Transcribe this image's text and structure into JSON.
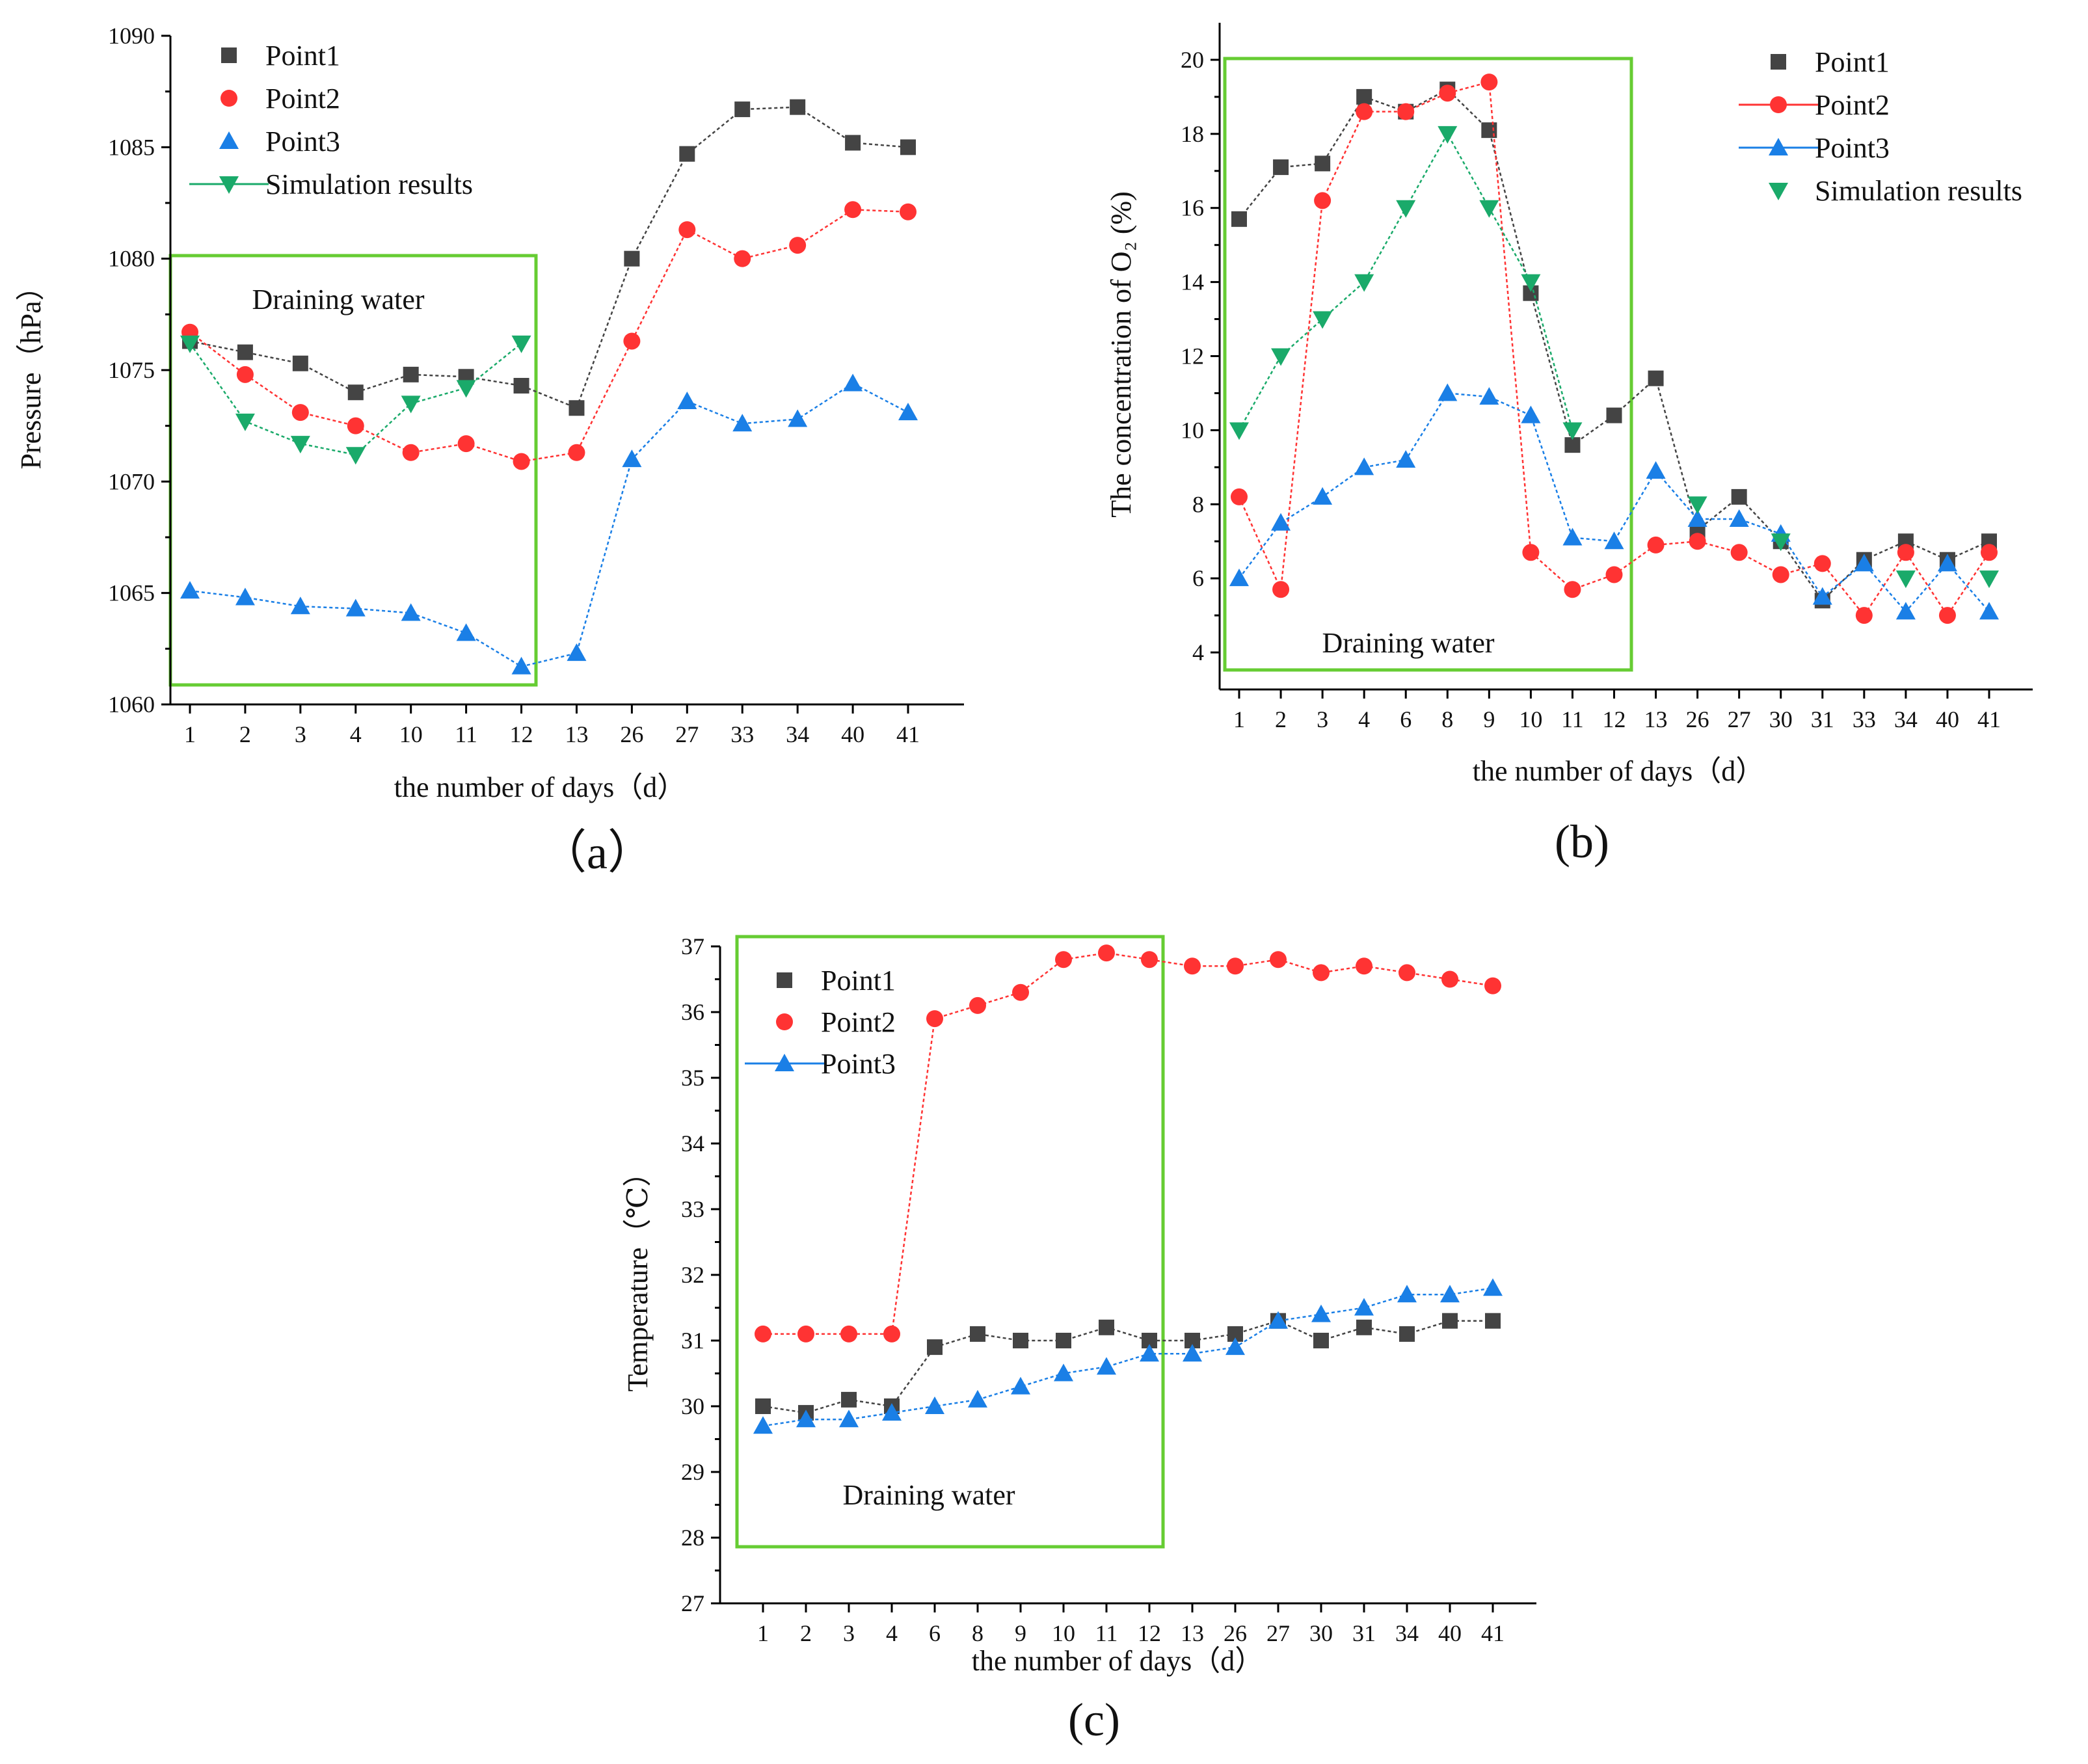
{
  "colors": {
    "Point1": "#444444",
    "Point2": "#ff3333",
    "Point3": "#1a7fe6",
    "Simulation results": "#1aaa6a",
    "box": "#66cc33"
  },
  "chart_data": [
    {
      "id": "a",
      "type": "line",
      "caption": "（a）",
      "xlabel": "the number of days（d）",
      "ylabel": "Pressure（hPa）",
      "ylim": [
        1060,
        1090
      ],
      "yticks": [
        1060,
        1065,
        1070,
        1075,
        1080,
        1085,
        1090
      ],
      "categories": [
        "1",
        "2",
        "3",
        "4",
        "10",
        "11",
        "12",
        "13",
        "26",
        "27",
        "33",
        "34",
        "40",
        "41"
      ],
      "annotation": "Draining water",
      "box_categories": [
        0,
        6
      ],
      "legend": [
        {
          "name": "Point1",
          "marker": "square",
          "line": false
        },
        {
          "name": "Point2",
          "marker": "circle",
          "line": false
        },
        {
          "name": "Point3",
          "marker": "triangle-up",
          "line": false
        },
        {
          "name": "Simulation results",
          "marker": "triangle-down",
          "line": true
        }
      ],
      "series": [
        {
          "name": "Point1",
          "marker": "square",
          "values": [
            1076.3,
            1075.8,
            1075.3,
            1074.0,
            1074.8,
            1074.7,
            1074.3,
            1073.3,
            1080.0,
            1084.7,
            1086.7,
            1086.8,
            1085.2,
            1085.0
          ]
        },
        {
          "name": "Point2",
          "marker": "circle",
          "values": [
            1076.7,
            1074.8,
            1073.1,
            1072.5,
            1071.3,
            1071.7,
            1070.9,
            1071.3,
            1076.3,
            1081.3,
            1080.0,
            1080.6,
            1082.2,
            1082.1
          ]
        },
        {
          "name": "Point3",
          "marker": "triangle-up",
          "values": [
            1065.1,
            1064.8,
            1064.4,
            1064.3,
            1064.1,
            1063.2,
            1061.7,
            1062.3,
            1071.0,
            1073.6,
            1072.6,
            1072.8,
            1074.4,
            1073.1
          ]
        },
        {
          "name": "Simulation results",
          "marker": "triangle-down",
          "values": [
            1076.2,
            1072.7,
            1071.7,
            1071.2,
            1073.5,
            1074.2,
            1076.2,
            null,
            null,
            null,
            null,
            null,
            null,
            null
          ]
        }
      ]
    },
    {
      "id": "b",
      "type": "line",
      "caption": "(b)",
      "xlabel": "the number of days（d）",
      "ylabel": "The concentration of O₂ (%)",
      "ylim": [
        3,
        21
      ],
      "yticks": [
        4,
        6,
        8,
        10,
        12,
        14,
        16,
        18,
        20
      ],
      "categories": [
        "1",
        "2",
        "3",
        "4",
        "6",
        "8",
        "9",
        "10",
        "11",
        "12",
        "13",
        "26",
        "27",
        "30",
        "31",
        "33",
        "34",
        "40",
        "41"
      ],
      "annotation": "Draining water",
      "box_categories": [
        0,
        9
      ],
      "legend": [
        {
          "name": "Point1",
          "marker": "square",
          "line": false
        },
        {
          "name": "Point2",
          "marker": "circle",
          "line": true
        },
        {
          "name": "Point3",
          "marker": "triangle-up",
          "line": true
        },
        {
          "name": "Simulation results",
          "marker": "triangle-down",
          "line": false
        }
      ],
      "series": [
        {
          "name": "Point1",
          "marker": "square",
          "values": [
            15.7,
            17.1,
            17.2,
            19.0,
            18.6,
            19.2,
            18.1,
            13.7,
            9.6,
            10.4,
            11.4,
            7.3,
            8.2,
            7.0,
            5.4,
            6.5,
            7.0,
            6.5,
            7.0
          ]
        },
        {
          "name": "Point2",
          "marker": "circle",
          "values": [
            8.2,
            5.7,
            16.2,
            18.6,
            18.6,
            19.1,
            19.4,
            6.7,
            5.7,
            6.1,
            6.9,
            7.0,
            6.7,
            6.1,
            6.4,
            5.0,
            6.7,
            5.0,
            6.7
          ]
        },
        {
          "name": "Point3",
          "marker": "triangle-up",
          "values": [
            6.0,
            7.5,
            8.2,
            9.0,
            9.2,
            11.0,
            10.9,
            10.4,
            7.1,
            7.0,
            8.9,
            7.6,
            7.6,
            7.2,
            5.5,
            6.4,
            5.1,
            6.4,
            5.1
          ]
        },
        {
          "name": "Simulation results",
          "marker": "triangle-down",
          "values": [
            10.0,
            12.0,
            13.0,
            14.0,
            16.0,
            18.0,
            16.0,
            14.0,
            10.0,
            null,
            null,
            8.0,
            null,
            7.0,
            null,
            null,
            6.0,
            null,
            6.0
          ]
        }
      ]
    },
    {
      "id": "c",
      "type": "line",
      "caption": "(c)",
      "xlabel": "the number of days（d）",
      "ylabel": "Temperature（℃）",
      "ylim": [
        27,
        37
      ],
      "yticks": [
        27,
        28,
        29,
        30,
        31,
        32,
        33,
        34,
        35,
        36,
        37
      ],
      "categories": [
        "1",
        "2",
        "3",
        "4",
        "6",
        "8",
        "9",
        "10",
        "11",
        "12",
        "13",
        "26",
        "27",
        "30",
        "31",
        "34",
        "40",
        "41"
      ],
      "annotation": "Draining water",
      "box_categories": [
        0,
        9
      ],
      "legend": [
        {
          "name": "Point1",
          "marker": "square",
          "line": false
        },
        {
          "name": "Point2",
          "marker": "circle",
          "line": false
        },
        {
          "name": "Point3",
          "marker": "triangle-up",
          "line": true
        }
      ],
      "series": [
        {
          "name": "Point1",
          "marker": "square",
          "values": [
            30.0,
            29.9,
            30.1,
            30.0,
            30.9,
            31.1,
            31.0,
            31.0,
            31.2,
            31.0,
            31.0,
            31.1,
            31.3,
            31.0,
            31.2,
            31.1,
            31.3,
            31.3
          ]
        },
        {
          "name": "Point2",
          "marker": "circle",
          "values": [
            31.1,
            31.1,
            31.1,
            31.1,
            35.9,
            36.1,
            36.3,
            36.8,
            36.9,
            36.8,
            36.7,
            36.7,
            36.8,
            36.6,
            36.7,
            36.6,
            36.5,
            36.4
          ]
        },
        {
          "name": "Point3",
          "marker": "triangle-up",
          "values": [
            29.7,
            29.8,
            29.8,
            29.9,
            30.0,
            30.1,
            30.3,
            30.5,
            30.6,
            30.8,
            30.8,
            30.9,
            31.3,
            31.4,
            31.5,
            31.7,
            31.7,
            31.8
          ]
        }
      ]
    }
  ]
}
